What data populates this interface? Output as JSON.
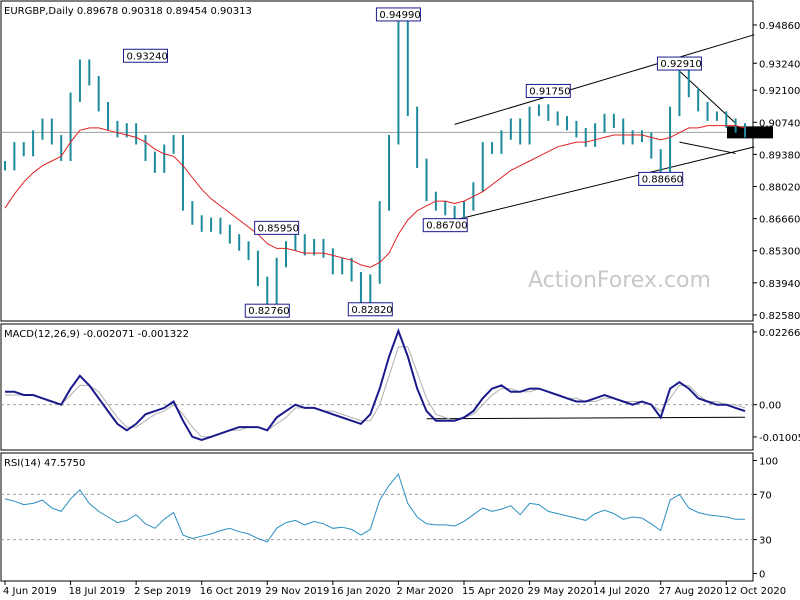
{
  "chart_data": {
    "type": "line",
    "main": {
      "title": "EURGBP,Daily  0.89678 0.90318 0.89454 0.90313",
      "last_price": "0.90313",
      "ylim": [
        0.8245,
        0.9575
      ],
      "y_ticks": [
        "0.94860",
        "0.93240",
        "0.92100",
        "0.90740",
        "0.89380",
        "0.88020",
        "0.86660",
        "0.85300",
        "0.83940",
        "0.82580"
      ],
      "series": [
        {
          "values": [
            0.889,
            0.897,
            0.895,
            0.902,
            0.907,
            0.9,
            0.893,
            0.918,
            0.932,
            0.925,
            0.914,
            0.906,
            0.903,
            0.905,
            0.9,
            0.893,
            0.888,
            0.896,
            0.9,
            0.872,
            0.866,
            0.863,
            0.865,
            0.862,
            0.858,
            0.855,
            0.851,
            0.84,
            0.828,
            0.848,
            0.855,
            0.858,
            0.853,
            0.856,
            0.852,
            0.845,
            0.848,
            0.842,
            0.833,
            0.841,
            0.872,
            0.9,
            0.949,
            0.912,
            0.89,
            0.876,
            0.872,
            0.87,
            0.868,
            0.872,
            0.88,
            0.897,
            0.896,
            0.902,
            0.907,
            0.9,
            0.912,
            0.913,
            0.91,
            0.908,
            0.906,
            0.903,
            0.899,
            0.905,
            0.909,
            0.907,
            0.9,
            0.902,
            0.901,
            0.894,
            0.887,
            0.912,
            0.928,
            0.92,
            0.914,
            0.91,
            0.91,
            0.907,
            0.905,
            0.903
          ]
        },
        {
          "values": [
            0.871,
            0.877,
            0.882,
            0.886,
            0.889,
            0.891,
            0.893,
            0.899,
            0.904,
            0.905,
            0.905,
            0.904,
            0.903,
            0.902,
            0.901,
            0.899,
            0.896,
            0.894,
            0.893,
            0.889,
            0.884,
            0.879,
            0.875,
            0.872,
            0.869,
            0.866,
            0.863,
            0.86,
            0.856,
            0.854,
            0.854,
            0.853,
            0.852,
            0.852,
            0.852,
            0.851,
            0.85,
            0.849,
            0.847,
            0.846,
            0.848,
            0.852,
            0.86,
            0.866,
            0.87,
            0.872,
            0.874,
            0.874,
            0.873,
            0.874,
            0.876,
            0.878,
            0.881,
            0.884,
            0.887,
            0.889,
            0.891,
            0.893,
            0.895,
            0.897,
            0.898,
            0.899,
            0.899,
            0.9,
            0.901,
            0.902,
            0.902,
            0.902,
            0.902,
            0.901,
            0.9,
            0.901,
            0.903,
            0.905,
            0.905,
            0.906,
            0.906,
            0.906,
            0.906,
            0.905
          ]
        }
      ],
      "labels": [
        {
          "text": "0.93240",
          "x": 15,
          "y": 0.9324
        },
        {
          "text": "0.94990",
          "x": 42,
          "y": 0.9499
        },
        {
          "text": "0.85950",
          "x": 29,
          "y": 0.8595
        },
        {
          "text": "0.82760",
          "x": 28,
          "y": 0.8276
        },
        {
          "text": "0.82820",
          "x": 39,
          "y": 0.8282
        },
        {
          "text": "0.91750",
          "x": 58,
          "y": 0.9175
        },
        {
          "text": "0.86700",
          "x": 47,
          "y": 0.867
        },
        {
          "text": "0.92910",
          "x": 72,
          "y": 0.9291
        },
        {
          "text": "0.88660",
          "x": 70,
          "y": 0.8866
        }
      ],
      "trendlines": [
        {
          "from": [
            48,
            0.9065
          ],
          "to": [
            80,
            0.9445
          ]
        },
        {
          "from": [
            48,
            0.866
          ],
          "to": [
            80,
            0.897
          ]
        },
        {
          "from": [
            72,
            0.9291
          ],
          "to": [
            78,
            0.907
          ]
        },
        {
          "from": [
            72,
            0.899
          ],
          "to": [
            78,
            0.8942
          ]
        }
      ],
      "watermark": "ActionForex.com"
    },
    "macd": {
      "title": "MACD(12,26,9) -0.002071 -0.001322",
      "ylim": [
        -0.0135,
        0.0242
      ],
      "y_ticks": [
        "0.022662",
        "0.00",
        "-0.010052"
      ],
      "zero_line": 0.0,
      "series": [
        {
          "values": [
            0.004,
            0.004,
            0.003,
            0.003,
            0.002,
            0.001,
            0.0,
            0.005,
            0.009,
            0.006,
            0.002,
            -0.002,
            -0.006,
            -0.008,
            -0.006,
            -0.003,
            -0.002,
            -0.001,
            0.001,
            -0.005,
            -0.01,
            -0.011,
            -0.01,
            -0.009,
            -0.008,
            -0.007,
            -0.007,
            -0.007,
            -0.008,
            -0.004,
            -0.002,
            0.0,
            -0.001,
            -0.001,
            -0.002,
            -0.003,
            -0.004,
            -0.005,
            -0.006,
            -0.003,
            0.005,
            0.015,
            0.023,
            0.015,
            0.005,
            -0.002,
            -0.005,
            -0.005,
            -0.005,
            -0.004,
            -0.002,
            0.002,
            0.005,
            0.006,
            0.004,
            0.004,
            0.005,
            0.005,
            0.004,
            0.003,
            0.002,
            0.001,
            0.001,
            0.002,
            0.003,
            0.002,
            0.001,
            0.0,
            0.001,
            0.0,
            -0.004,
            0.005,
            0.007,
            0.005,
            0.002,
            0.001,
            0.0,
            0.0,
            -0.001,
            -0.002
          ]
        },
        {
          "values": [
            0.003,
            0.003,
            0.003,
            0.003,
            0.002,
            0.001,
            0.0,
            0.003,
            0.006,
            0.006,
            0.004,
            0.0,
            -0.004,
            -0.007,
            -0.007,
            -0.005,
            -0.003,
            -0.002,
            0.0,
            -0.003,
            -0.007,
            -0.01,
            -0.01,
            -0.009,
            -0.008,
            -0.008,
            -0.007,
            -0.007,
            -0.008,
            -0.006,
            -0.004,
            -0.001,
            -0.001,
            -0.001,
            -0.002,
            -0.002,
            -0.003,
            -0.004,
            -0.005,
            -0.005,
            0.0,
            0.009,
            0.018,
            0.018,
            0.01,
            0.002,
            -0.003,
            -0.004,
            -0.005,
            -0.004,
            -0.003,
            0.0,
            0.003,
            0.005,
            0.005,
            0.004,
            0.004,
            0.005,
            0.004,
            0.003,
            0.002,
            0.002,
            0.001,
            0.001,
            0.002,
            0.002,
            0.001,
            0.001,
            0.001,
            0.0,
            -0.002,
            0.002,
            0.006,
            0.006,
            0.003,
            0.001,
            0.001,
            0.0,
            0.0,
            -0.001
          ]
        }
      ],
      "baseline": {
        "from": [
          45,
          -0.0044
        ],
        "to": [
          79,
          -0.0039
        ]
      }
    },
    "rsi": {
      "title": "RSI(14) 47.5750",
      "ylim": [
        -4,
        104
      ],
      "y_ticks": [
        "100",
        "70",
        "30",
        "0"
      ],
      "levels": [
        70,
        30
      ],
      "series": [
        {
          "values": [
            66,
            64,
            61,
            62,
            65,
            58,
            55,
            66,
            74,
            62,
            55,
            50,
            45,
            47,
            52,
            44,
            40,
            48,
            54,
            34,
            31,
            33,
            35,
            38,
            40,
            37,
            35,
            31,
            28,
            40,
            45,
            47,
            43,
            46,
            44,
            40,
            41,
            39,
            34,
            39,
            65,
            78,
            88,
            62,
            50,
            44,
            43,
            43,
            42,
            46,
            52,
            58,
            55,
            57,
            60,
            52,
            62,
            61,
            55,
            53,
            51,
            49,
            47,
            53,
            56,
            53,
            48,
            50,
            49,
            44,
            38,
            65,
            70,
            58,
            54,
            52,
            51,
            50,
            48,
            48
          ]
        }
      ]
    },
    "x_tick_labels": [
      "4 Jun 2019",
      "18 Jul 2019",
      "2 Sep 2019",
      "16 Oct 2019",
      "29 Nov 2019",
      "16 Jan 2020",
      "2 Mar 2020",
      "15 Apr 2020",
      "29 May 2020",
      "14 Jul 2020",
      "27 Aug 2020",
      "12 Oct 2020"
    ],
    "x_tick_index": [
      0,
      7,
      14,
      21,
      28,
      35,
      42,
      49,
      56,
      63,
      70,
      77
    ],
    "colors": {
      "price": "#1a8a9c",
      "moving_average": "#e02020",
      "macd": "#1a1a8c",
      "signal": "#b0b0b0",
      "rsi": "#2a8fc0",
      "label_border": "#1a1a8c",
      "grid": "#a0a0a0",
      "last_price_bg": "#000000",
      "last_price_fg": "#ffffff"
    }
  }
}
